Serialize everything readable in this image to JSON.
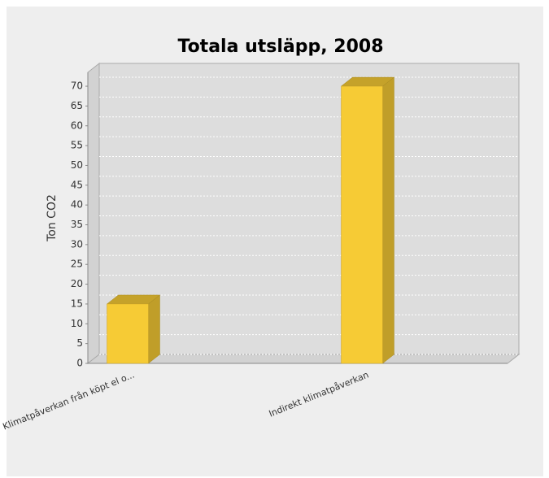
{
  "chart_data": {
    "type": "bar3d",
    "title": "Totala utsläpp, 2008",
    "y_label": "Ton CO2",
    "categories": [
      "Klimatpåverkan från köpt el o...",
      "Indirekt klimatpåverkan"
    ],
    "values": [
      15,
      70
    ],
    "color": "#f6cb35",
    "ylim": [
      0,
      73.5
    ],
    "yticks": [
      0,
      5,
      10,
      15,
      20,
      25,
      30,
      35,
      40,
      45,
      50,
      55,
      60,
      65,
      70
    ],
    "grid": true
  }
}
